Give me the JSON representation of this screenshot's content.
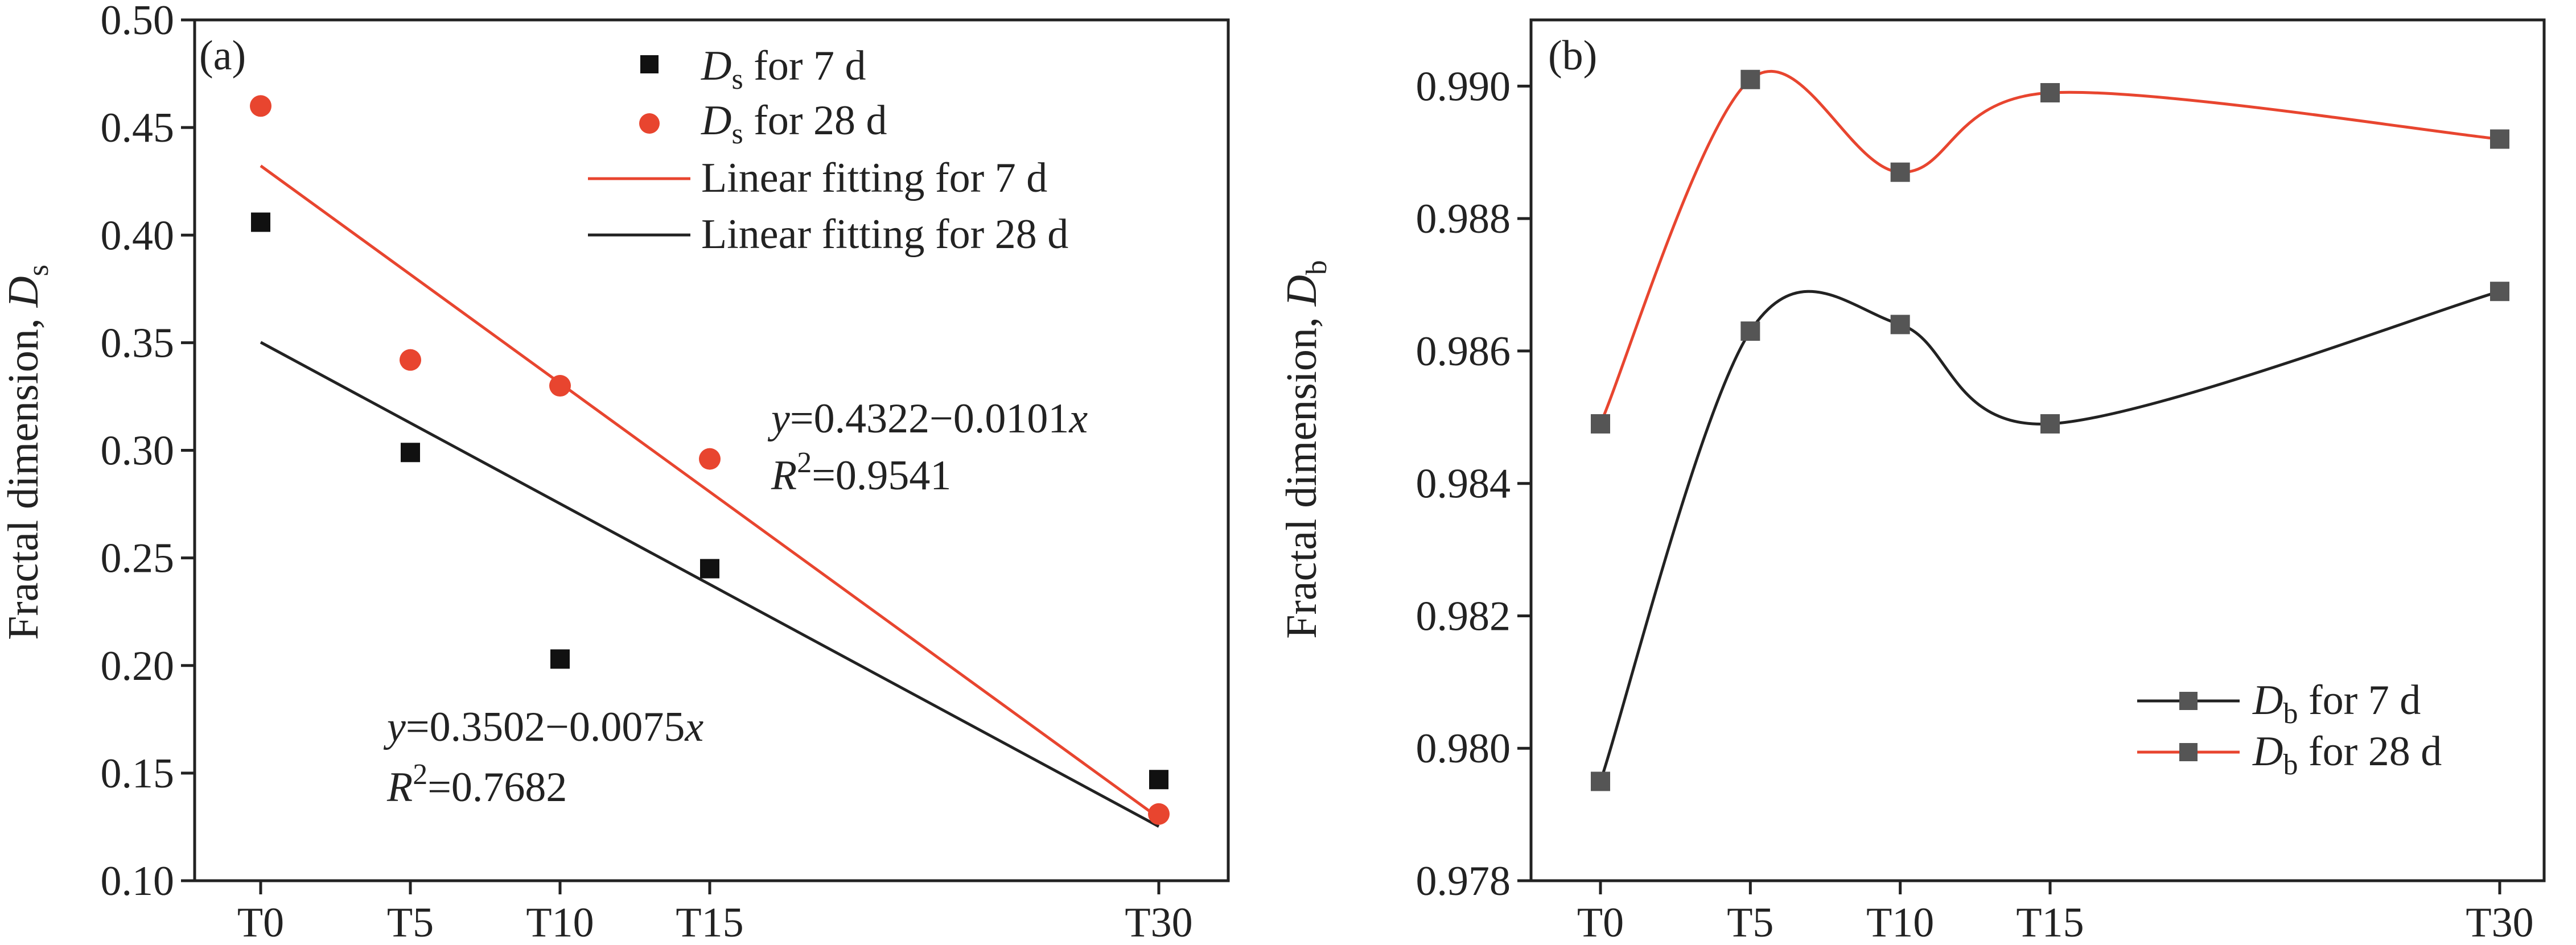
{
  "colors": {
    "seven_day": "#222222",
    "twenty_eight_day": "#e8452f",
    "marker_b": "#555555"
  },
  "chart_data": [
    {
      "panel": "(a)",
      "type": "scatter",
      "x": [
        0,
        5,
        10,
        15,
        30
      ],
      "xticklabels": [
        "T0",
        "T5",
        "T10",
        "T15",
        "T30"
      ],
      "ylabel": {
        "main": "Fractal dimension, ",
        "sym": "D",
        "sub": "s"
      },
      "ylim": [
        0.1,
        0.5
      ],
      "yticks": [
        0.1,
        0.15,
        0.2,
        0.25,
        0.3,
        0.35,
        0.4,
        0.45,
        0.5
      ],
      "ytick_labels": [
        "0.10",
        "0.15",
        "0.20",
        "0.25",
        "0.30",
        "0.35",
        "0.40",
        "0.45",
        "0.50"
      ],
      "series": [
        {
          "sym": "D",
          "sub": "s",
          "name_rest": " for 7 d",
          "marker": "square",
          "color": "#111111",
          "values": [
            0.406,
            0.299,
            0.203,
            0.245,
            0.147
          ]
        },
        {
          "sym": "D",
          "sub": "s",
          "name_rest": " for 28 d",
          "marker": "circle",
          "color": "#e8452f",
          "values": [
            0.46,
            0.342,
            0.33,
            0.296,
            0.131
          ]
        }
      ],
      "fits": [
        {
          "name": "Linear fitting for 7 d",
          "color": "#e8452f",
          "intercept": 0.4322,
          "slope": -0.0101
        },
        {
          "name": "Linear fitting for 28 d",
          "color": "#222222",
          "intercept": 0.3502,
          "slope": -0.0075
        }
      ],
      "annotations": [
        {
          "eq_y": "y",
          "eq_rest": "=0.4322−0.0101",
          "eq_x": "x",
          "r_sym": "R",
          "r_sup": "2",
          "r_rest": "=0.9541"
        },
        {
          "eq_y": "y",
          "eq_rest": "=0.3502−0.0075",
          "eq_x": "x",
          "r_sym": "R",
          "r_sup": "2",
          "r_rest": "=0.7682"
        }
      ]
    },
    {
      "panel": "(b)",
      "type": "line",
      "x": [
        0,
        5,
        10,
        15,
        30
      ],
      "xticklabels": [
        "T0",
        "T5",
        "T10",
        "T15",
        "T30"
      ],
      "ylabel": {
        "main": "Fractal dimension, ",
        "sym": "D",
        "sub": "b"
      },
      "ylim": [
        0.978,
        0.991
      ],
      "yticks": [
        0.978,
        0.98,
        0.982,
        0.984,
        0.986,
        0.988,
        0.99
      ],
      "ytick_labels": [
        "0.978",
        "0.980",
        "0.982",
        "0.984",
        "0.986",
        "0.988",
        "0.990"
      ],
      "series": [
        {
          "sym": "D",
          "sub": "b",
          "name_rest": " for 7 d",
          "marker": "square",
          "color": "#222222",
          "values": [
            0.9795,
            0.9863,
            0.9864,
            0.9849,
            0.9869
          ]
        },
        {
          "sym": "D",
          "sub": "b",
          "name_rest": " for 28 d",
          "marker": "square",
          "color": "#e8452f",
          "values": [
            0.9849,
            0.9901,
            0.9887,
            0.9899,
            0.9892
          ]
        }
      ]
    }
  ]
}
